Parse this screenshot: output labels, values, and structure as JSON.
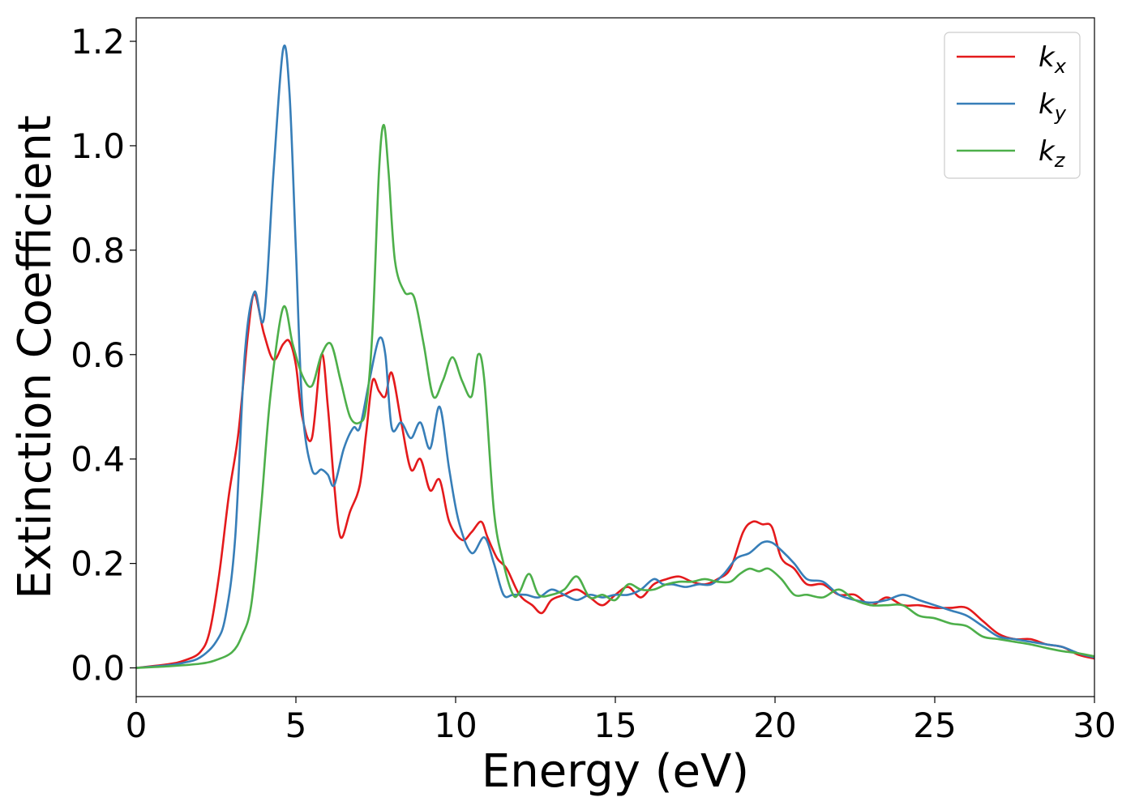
{
  "chart_data": {
    "type": "line",
    "xlabel": "Energy (eV)",
    "ylabel": "Extinction Coefficient",
    "xlim": [
      0,
      30
    ],
    "ylim": [
      -0.055,
      1.245
    ],
    "xticks": [
      0,
      5,
      10,
      15,
      20,
      25,
      30
    ],
    "xtick_labels": [
      "0",
      "5",
      "10",
      "15",
      "20",
      "25",
      "30"
    ],
    "yticks": [
      0.0,
      0.2,
      0.4,
      0.6,
      0.8,
      1.0,
      1.2
    ],
    "ytick_labels": [
      "0.0",
      "0.2",
      "0.4",
      "0.6",
      "0.8",
      "1.0",
      "1.2"
    ],
    "grid": false,
    "legend_position": "top-right",
    "series": [
      {
        "name": "k",
        "subscript": "x",
        "color": "#e41a1c",
        "x": [
          0,
          1,
          1.5,
          2,
          2.3,
          2.6,
          2.9,
          3.2,
          3.5,
          3.7,
          4.0,
          4.3,
          4.6,
          4.8,
          5.0,
          5.2,
          5.5,
          5.8,
          6.0,
          6.2,
          6.4,
          6.7,
          7.0,
          7.2,
          7.4,
          7.6,
          7.8,
          8.0,
          8.3,
          8.6,
          8.9,
          9.2,
          9.5,
          9.8,
          10.2,
          10.5,
          10.8,
          11.0,
          11.3,
          11.6,
          12.0,
          12.4,
          12.7,
          13.0,
          13.4,
          13.8,
          14.2,
          14.6,
          15.0,
          15.4,
          15.8,
          16.2,
          16.6,
          17.0,
          17.4,
          17.8,
          18.2,
          18.6,
          19.0,
          19.3,
          19.6,
          19.9,
          20.2,
          20.6,
          21.0,
          21.5,
          22.0,
          22.5,
          23.0,
          23.5,
          24.0,
          24.5,
          25.0,
          25.5,
          26.0,
          26.5,
          27.0,
          27.5,
          28.0,
          28.5,
          29.0,
          29.5,
          30.0
        ],
        "y": [
          0.0,
          0.007,
          0.014,
          0.03,
          0.07,
          0.18,
          0.33,
          0.45,
          0.64,
          0.715,
          0.64,
          0.59,
          0.62,
          0.625,
          0.58,
          0.48,
          0.44,
          0.6,
          0.5,
          0.35,
          0.25,
          0.3,
          0.35,
          0.45,
          0.55,
          0.53,
          0.52,
          0.565,
          0.47,
          0.38,
          0.4,
          0.34,
          0.36,
          0.28,
          0.245,
          0.26,
          0.28,
          0.25,
          0.21,
          0.19,
          0.14,
          0.12,
          0.105,
          0.13,
          0.14,
          0.15,
          0.135,
          0.12,
          0.14,
          0.155,
          0.135,
          0.16,
          0.17,
          0.175,
          0.165,
          0.16,
          0.17,
          0.19,
          0.26,
          0.28,
          0.275,
          0.27,
          0.21,
          0.19,
          0.16,
          0.16,
          0.14,
          0.14,
          0.12,
          0.135,
          0.12,
          0.12,
          0.115,
          0.115,
          0.115,
          0.09,
          0.065,
          0.055,
          0.055,
          0.045,
          0.04,
          0.025,
          0.018
        ]
      },
      {
        "name": "k",
        "subscript": "y",
        "color": "#377eb8",
        "x": [
          0,
          1,
          1.5,
          2,
          2.5,
          2.8,
          3.1,
          3.4,
          3.7,
          4.0,
          4.3,
          4.6,
          4.8,
          5.0,
          5.2,
          5.5,
          5.8,
          6.0,
          6.2,
          6.5,
          6.8,
          7.0,
          7.3,
          7.6,
          7.8,
          8.0,
          8.3,
          8.6,
          8.9,
          9.2,
          9.5,
          9.8,
          10.1,
          10.5,
          10.9,
          11.2,
          11.5,
          11.8,
          12.2,
          12.6,
          13.0,
          13.4,
          13.8,
          14.2,
          14.6,
          15.0,
          15.4,
          15.8,
          16.2,
          16.5,
          16.8,
          17.2,
          17.6,
          18.0,
          18.4,
          18.8,
          19.2,
          19.6,
          19.9,
          20.2,
          20.6,
          21.0,
          21.5,
          22.0,
          22.5,
          23.0,
          23.5,
          24.0,
          24.5,
          25.0,
          25.5,
          26.0,
          26.5,
          27.0,
          27.5,
          28.0,
          28.5,
          29.0,
          29.5,
          30.0
        ],
        "y": [
          0.0,
          0.005,
          0.01,
          0.02,
          0.05,
          0.1,
          0.25,
          0.6,
          0.72,
          0.67,
          0.95,
          1.185,
          1.1,
          0.8,
          0.5,
          0.38,
          0.38,
          0.37,
          0.35,
          0.42,
          0.46,
          0.46,
          0.55,
          0.63,
          0.6,
          0.46,
          0.47,
          0.44,
          0.47,
          0.42,
          0.5,
          0.38,
          0.28,
          0.22,
          0.25,
          0.2,
          0.14,
          0.14,
          0.14,
          0.135,
          0.15,
          0.14,
          0.13,
          0.14,
          0.135,
          0.14,
          0.14,
          0.15,
          0.17,
          0.16,
          0.16,
          0.155,
          0.16,
          0.16,
          0.18,
          0.21,
          0.22,
          0.24,
          0.24,
          0.225,
          0.2,
          0.17,
          0.165,
          0.14,
          0.13,
          0.125,
          0.13,
          0.14,
          0.13,
          0.12,
          0.11,
          0.1,
          0.08,
          0.06,
          0.055,
          0.05,
          0.045,
          0.04,
          0.028,
          0.02
        ]
      },
      {
        "name": "k",
        "subscript": "z",
        "color": "#4daf4a",
        "x": [
          0,
          1,
          2,
          2.5,
          3.0,
          3.3,
          3.6,
          3.9,
          4.2,
          4.6,
          4.9,
          5.2,
          5.5,
          5.8,
          6.1,
          6.4,
          6.7,
          7.0,
          7.2,
          7.4,
          7.6,
          7.75,
          7.9,
          8.1,
          8.4,
          8.7,
          9.0,
          9.3,
          9.6,
          9.9,
          10.2,
          10.5,
          10.7,
          10.9,
          11.2,
          11.5,
          11.8,
          12.0,
          12.3,
          12.6,
          13.0,
          13.4,
          13.8,
          14.2,
          14.6,
          15.0,
          15.4,
          15.8,
          16.2,
          16.6,
          17.0,
          17.4,
          17.8,
          18.2,
          18.6,
          18.9,
          19.2,
          19.5,
          19.8,
          20.2,
          20.6,
          21.0,
          21.5,
          22.0,
          22.5,
          23.0,
          23.5,
          24.0,
          24.5,
          25.0,
          25.5,
          26.0,
          26.5,
          27.0,
          27.5,
          28.0,
          28.5,
          29.0,
          29.5,
          30.0
        ],
        "y": [
          0.0,
          0.003,
          0.008,
          0.015,
          0.03,
          0.06,
          0.12,
          0.3,
          0.52,
          0.69,
          0.62,
          0.56,
          0.54,
          0.6,
          0.62,
          0.55,
          0.48,
          0.47,
          0.5,
          0.65,
          0.95,
          1.04,
          0.95,
          0.78,
          0.72,
          0.71,
          0.62,
          0.52,
          0.55,
          0.595,
          0.55,
          0.52,
          0.6,
          0.55,
          0.3,
          0.2,
          0.14,
          0.145,
          0.18,
          0.14,
          0.14,
          0.15,
          0.175,
          0.135,
          0.14,
          0.13,
          0.16,
          0.15,
          0.15,
          0.16,
          0.165,
          0.165,
          0.17,
          0.165,
          0.165,
          0.18,
          0.19,
          0.185,
          0.19,
          0.17,
          0.14,
          0.14,
          0.135,
          0.15,
          0.13,
          0.12,
          0.12,
          0.12,
          0.1,
          0.095,
          0.085,
          0.08,
          0.06,
          0.055,
          0.05,
          0.045,
          0.038,
          0.032,
          0.028,
          0.022
        ]
      }
    ]
  }
}
